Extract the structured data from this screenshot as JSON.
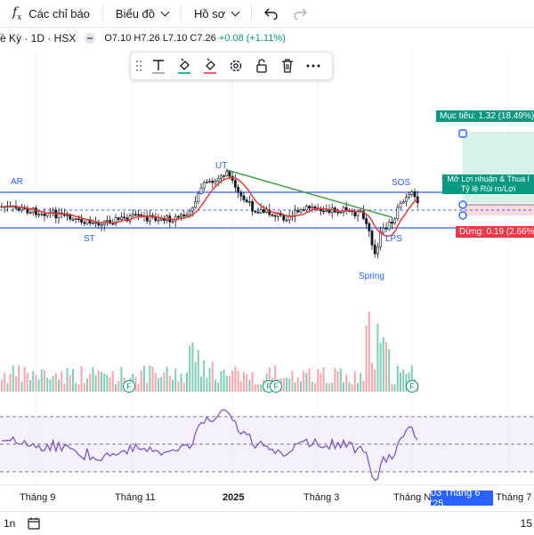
{
  "toolbar": {
    "indicators_label": "Các chỉ báo",
    "chart_type_label": "Biểu đồ",
    "profile_label": "Hồ sơ"
  },
  "legend": {
    "symbol": "ề Kỳ · 1D · HSX",
    "open": "O7.10",
    "high": "H7.26",
    "low": "L7.10",
    "close": "C7.26",
    "change": "+0.08 (+1.11%)"
  },
  "annotations": {
    "ar": "AR",
    "st": "ST",
    "ut": "UT",
    "sos": "SOS",
    "lps": "LPS",
    "spring": "Spring"
  },
  "position": {
    "target_label": "Mục tiêu: 1.32 (18.49%)",
    "stop_label": "Dừng: 0.19 (2.66%)",
    "pnl_label": "Mở Lợi nhuận & Thua l",
    "ratio_label": "Tỷ lệ Rủi ro/Lợi"
  },
  "volume_markers": {
    "f_label": "F"
  },
  "time_axis": {
    "t1": "Tháng 9",
    "t2": "Tháng 11",
    "t3": "2025",
    "t4": "Tháng 3",
    "t5": "Tháng Năm",
    "t6": "Tháng 7",
    "crosshair": "03 Tháng 6 '25"
  },
  "bottombar": {
    "interval": "1n",
    "right_value": "15"
  },
  "colors": {
    "up": "#089981",
    "down": "#f23645",
    "ma": "#e53935",
    "level": "#2962ff",
    "trend": "#43a047",
    "rsi": "#7e57c2"
  },
  "icons": {
    "undo": "undo-icon",
    "redo": "redo-icon",
    "text": "text-tool-icon",
    "fill": "fill-color-icon",
    "line_color": "line-color-icon",
    "settings": "gear-icon",
    "lock": "lock-icon",
    "delete": "trash-icon",
    "more": "more-icon"
  }
}
